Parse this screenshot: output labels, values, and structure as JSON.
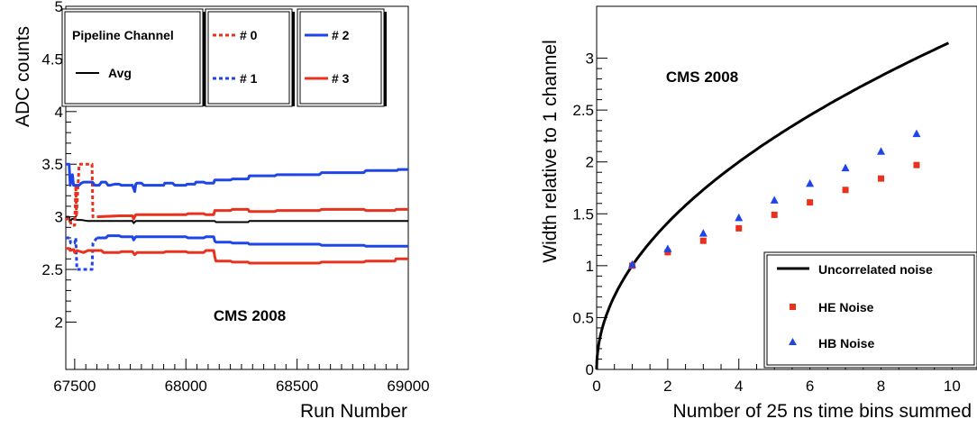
{
  "chart_data": [
    {
      "type": "line",
      "title": "",
      "xlabel": "Run Number",
      "ylabel": "ADC counts",
      "xlim": [
        67460,
        69000
      ],
      "ylim": [
        1.55,
        5
      ],
      "xticks": [
        67500,
        68000,
        68500,
        69000
      ],
      "yticks": [
        2,
        2.5,
        3,
        3.5,
        4,
        4.5,
        5
      ],
      "annotation": "CMS 2008",
      "legend": {
        "placement": "top",
        "header": "Pipeline Channel",
        "entries": [
          "Avg",
          "# 0",
          "# 1",
          "# 2",
          "# 3"
        ]
      },
      "series": [
        {
          "name": "Avg",
          "color": "#000000",
          "dash": "solid",
          "points": [
            [
              67460,
              3.0
            ],
            [
              67475,
              3.0
            ],
            [
              67478,
              2.95
            ],
            [
              67488,
              2.98
            ],
            [
              67500,
              2.98
            ],
            [
              67510,
              2.97
            ],
            [
              67530,
              2.97
            ],
            [
              67560,
              2.96
            ],
            [
              67600,
              2.96
            ],
            [
              67650,
              2.96
            ],
            [
              67700,
              2.96
            ],
            [
              67760,
              2.96
            ],
            [
              67765,
              2.94
            ],
            [
              67775,
              2.96
            ],
            [
              67800,
              2.96
            ],
            [
              67900,
              2.96
            ],
            [
              68000,
              2.96
            ],
            [
              68100,
              2.96
            ],
            [
              68130,
              2.96
            ],
            [
              68135,
              2.95
            ],
            [
              68280,
              2.95
            ],
            [
              68285,
              2.96
            ],
            [
              68400,
              2.96
            ],
            [
              68500,
              2.96
            ],
            [
              68600,
              2.96
            ],
            [
              68700,
              2.96
            ],
            [
              68800,
              2.96
            ],
            [
              68900,
              2.96
            ],
            [
              69000,
              2.96
            ]
          ]
        },
        {
          "name": "# 0",
          "color": "#e8321e",
          "dash": "dashed",
          "points": [
            [
              67460,
              2.98
            ],
            [
              67480,
              2.98
            ],
            [
              67484,
              2.92
            ],
            [
              67490,
              2.92
            ],
            [
              67500,
              2.92
            ],
            [
              67505,
              3.3
            ],
            [
              67508,
              3.0
            ],
            [
              67520,
              3.5
            ],
            [
              67560,
              3.5
            ],
            [
              67578,
              3.5
            ],
            [
              67582,
              3.0
            ],
            [
              67600,
              3.0
            ]
          ]
        },
        {
          "name": "# 1",
          "color": "#1e46e6",
          "dash": "dashed",
          "points": [
            [
              67460,
              2.8
            ],
            [
              67478,
              2.8
            ],
            [
              67482,
              2.75
            ],
            [
              67490,
              2.75
            ],
            [
              67500,
              2.75
            ],
            [
              67505,
              2.8
            ],
            [
              67510,
              2.5
            ],
            [
              67560,
              2.5
            ],
            [
              67578,
              2.5
            ],
            [
              67582,
              2.75
            ],
            [
              67600,
              2.8
            ]
          ]
        },
        {
          "name": "# 2",
          "color": "#1e46e6",
          "dash": "solid",
          "points": [
            [
              67460,
              3.5
            ],
            [
              67475,
              3.5
            ],
            [
              67480,
              3.3
            ],
            [
              67490,
              3.4
            ],
            [
              67495,
              3.3
            ],
            [
              67520,
              3.3
            ],
            [
              67530,
              3.32
            ],
            [
              67540,
              3.33
            ],
            [
              67580,
              3.33
            ],
            [
              67590,
              3.3
            ],
            [
              67610,
              3.3
            ],
            [
              67620,
              3.33
            ],
            [
              67640,
              3.33
            ],
            [
              67650,
              3.3
            ],
            [
              67660,
              3.3
            ],
            [
              67680,
              3.31
            ],
            [
              67700,
              3.31
            ],
            [
              67710,
              3.3
            ],
            [
              67760,
              3.3
            ],
            [
              67770,
              3.24
            ],
            [
              67775,
              3.31
            ],
            [
              67780,
              3.32
            ],
            [
              67800,
              3.32
            ],
            [
              67810,
              3.3
            ],
            [
              67900,
              3.3
            ],
            [
              67905,
              3.32
            ],
            [
              67940,
              3.32
            ],
            [
              67950,
              3.3
            ],
            [
              68000,
              3.3
            ],
            [
              68005,
              3.31
            ],
            [
              68040,
              3.31
            ],
            [
              68045,
              3.33
            ],
            [
              68080,
              3.33
            ],
            [
              68090,
              3.32
            ],
            [
              68125,
              3.32
            ],
            [
              68130,
              3.35
            ],
            [
              68200,
              3.35
            ],
            [
              68210,
              3.36
            ],
            [
              68280,
              3.36
            ],
            [
              68285,
              3.39
            ],
            [
              68400,
              3.39
            ],
            [
              68410,
              3.4
            ],
            [
              68600,
              3.4
            ],
            [
              68610,
              3.42
            ],
            [
              68800,
              3.42
            ],
            [
              68810,
              3.44
            ],
            [
              68950,
              3.44
            ],
            [
              68955,
              3.45
            ],
            [
              69000,
              3.45
            ]
          ]
        },
        {
          "name": "# 3",
          "color": "#e8321e",
          "dash": "solid",
          "points": [
            [
              67460,
              2.7
            ],
            [
              67475,
              2.7
            ],
            [
              67480,
              2.68
            ],
            [
              67495,
              2.69
            ],
            [
              67500,
              2.66
            ],
            [
              67510,
              2.68
            ],
            [
              67540,
              2.66
            ],
            [
              67560,
              2.68
            ],
            [
              67620,
              2.68
            ],
            [
              67630,
              2.66
            ],
            [
              67700,
              2.66
            ],
            [
              67710,
              2.67
            ],
            [
              67760,
              2.67
            ],
            [
              67770,
              2.64
            ],
            [
              67780,
              2.66
            ],
            [
              67800,
              2.66
            ],
            [
              67900,
              2.66
            ],
            [
              67910,
              2.67
            ],
            [
              68000,
              2.67
            ],
            [
              68010,
              2.66
            ],
            [
              68080,
              2.66
            ],
            [
              68090,
              2.68
            ],
            [
              68125,
              2.68
            ],
            [
              68130,
              2.62
            ],
            [
              68135,
              2.58
            ],
            [
              68200,
              2.58
            ],
            [
              68210,
              2.57
            ],
            [
              68280,
              2.57
            ],
            [
              68285,
              2.56
            ],
            [
              68400,
              2.56
            ],
            [
              68410,
              2.56
            ],
            [
              68600,
              2.56
            ],
            [
              68610,
              2.57
            ],
            [
              68800,
              2.57
            ],
            [
              68810,
              2.58
            ],
            [
              68940,
              2.58
            ],
            [
              68945,
              2.6
            ],
            [
              69000,
              2.6
            ]
          ]
        },
        {
          "name": "# 0 (solid)",
          "color": "#e8321e",
          "dash": "solid",
          "points": [
            [
              67600,
              3.0
            ],
            [
              67700,
              3.01
            ],
            [
              67760,
              3.01
            ],
            [
              67765,
              2.98
            ],
            [
              67775,
              3.02
            ],
            [
              67800,
              3.02
            ],
            [
              67900,
              3.02
            ],
            [
              68000,
              3.02
            ],
            [
              68010,
              3.03
            ],
            [
              68080,
              3.03
            ],
            [
              68090,
              3.02
            ],
            [
              68125,
              3.02
            ],
            [
              68130,
              3.06
            ],
            [
              68200,
              3.06
            ],
            [
              68210,
              3.07
            ],
            [
              68280,
              3.07
            ],
            [
              68285,
              3.05
            ],
            [
              68400,
              3.05
            ],
            [
              68410,
              3.06
            ],
            [
              68600,
              3.06
            ],
            [
              68610,
              3.07
            ],
            [
              68800,
              3.07
            ],
            [
              68810,
              3.06
            ],
            [
              68940,
              3.06
            ],
            [
              68945,
              3.07
            ],
            [
              69000,
              3.07
            ]
          ]
        },
        {
          "name": "# 1 (solid)",
          "color": "#1e46e6",
          "dash": "solid",
          "points": [
            [
              67600,
              2.8
            ],
            [
              67640,
              2.8
            ],
            [
              67650,
              2.82
            ],
            [
              67700,
              2.82
            ],
            [
              67710,
              2.81
            ],
            [
              67760,
              2.81
            ],
            [
              67765,
              2.78
            ],
            [
              67775,
              2.81
            ],
            [
              67800,
              2.81
            ],
            [
              67900,
              2.81
            ],
            [
              68000,
              2.81
            ],
            [
              68010,
              2.8
            ],
            [
              68080,
              2.8
            ],
            [
              68090,
              2.81
            ],
            [
              68125,
              2.81
            ],
            [
              68130,
              2.77
            ],
            [
              68135,
              2.76
            ],
            [
              68200,
              2.76
            ],
            [
              68210,
              2.75
            ],
            [
              68280,
              2.75
            ],
            [
              68285,
              2.74
            ],
            [
              68400,
              2.74
            ],
            [
              68410,
              2.74
            ],
            [
              68600,
              2.74
            ],
            [
              68610,
              2.73
            ],
            [
              68800,
              2.73
            ],
            [
              68810,
              2.72
            ],
            [
              69000,
              2.72
            ]
          ]
        }
      ]
    },
    {
      "type": "scatter",
      "title": "",
      "xlabel": "Number of 25 ns time bins summed",
      "ylabel": "Width relative to 1 channel",
      "xlim": [
        0,
        10.7
      ],
      "ylim": [
        0,
        3.5
      ],
      "xticks": [
        0,
        2,
        4,
        6,
        8,
        10
      ],
      "yticks": [
        0,
        0.5,
        1,
        1.5,
        2,
        2.5,
        3
      ],
      "annotation": "CMS 2008",
      "legend": {
        "placement": "bottom-right",
        "entries": [
          "Uncorrelated noise",
          "HE Noise",
          "HB Noise"
        ]
      },
      "series": [
        {
          "name": "Uncorrelated noise",
          "type": "line",
          "color": "#000000",
          "function": "sqrt(x)",
          "x_range": [
            0,
            9.9
          ]
        },
        {
          "name": "HE Noise",
          "marker": "square",
          "color": "#e8321e",
          "x": [
            1,
            2,
            3,
            4,
            5,
            6,
            7,
            8,
            9
          ],
          "y": [
            1.0,
            1.13,
            1.24,
            1.36,
            1.49,
            1.61,
            1.73,
            1.84,
            1.97
          ]
        },
        {
          "name": "HB Noise",
          "marker": "triangle",
          "color": "#1e46e6",
          "x": [
            1,
            2,
            3,
            4,
            5,
            6,
            7,
            8,
            9
          ],
          "y": [
            1.01,
            1.16,
            1.31,
            1.46,
            1.63,
            1.79,
            1.94,
            2.1,
            2.27
          ]
        }
      ]
    }
  ]
}
